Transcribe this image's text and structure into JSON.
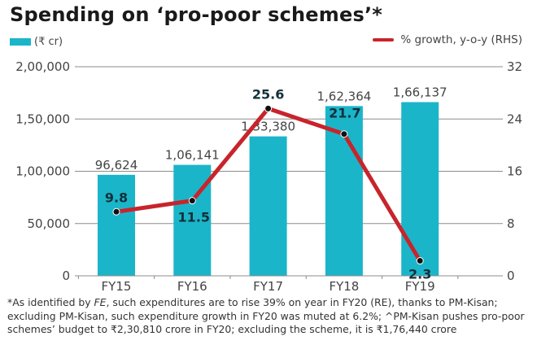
{
  "chart_data": {
    "type": "bar+line",
    "title": "Spending on ‘pro-poor schemes’*",
    "categories": [
      "FY15",
      "FY16",
      "FY17",
      "FY18",
      "FY19"
    ],
    "series": [
      {
        "name": "(₹ cr)",
        "type": "bar",
        "axis": "left",
        "color": "#1bb5c9",
        "values": [
          96624,
          106141,
          133380,
          162364,
          166137
        ],
        "labels": [
          "96,624",
          "1,06,141",
          "1,33,380",
          "1,62,364",
          "1,66,137"
        ]
      },
      {
        "name": "% growth, y-o-y (RHS)",
        "type": "line",
        "axis": "right",
        "color": "#c8242b",
        "values": [
          9.8,
          11.5,
          25.6,
          21.7,
          2.3
        ],
        "labels": [
          "9.8",
          "11.5",
          "25.6",
          "21.7",
          "2.3"
        ]
      }
    ],
    "left_axis": {
      "ylim": [
        0,
        200000
      ],
      "ticks": [
        0,
        50000,
        100000,
        150000,
        200000
      ],
      "tick_labels": [
        "0",
        "50,000",
        "1,00,000",
        "1,50,000",
        "2,00,000"
      ]
    },
    "right_axis": {
      "ylim": [
        0,
        32
      ],
      "ticks": [
        0,
        8,
        16,
        24,
        32
      ],
      "tick_labels": [
        "0",
        "8",
        "16",
        "24",
        "32"
      ]
    },
    "grid": true,
    "legend": [
      "top-left",
      "top-right"
    ]
  },
  "legend": {
    "bar_label": "(₹ cr)",
    "line_label": "% growth, y-o-y (RHS)"
  },
  "footnote": {
    "part1": "*As identified by ",
    "italic": "FE",
    "part2": ", such expenditures are to rise 39% on year in FY20 (RE), thanks to PM-Kisan; excluding PM-Kisan, such expenditure growth in FY20 was muted at 6.2%; ^PM-Kisan pushes pro-poor schemes’ budget to ₹2,30,810 crore in FY20; excluding the scheme, it is ₹1,76,440 crore"
  }
}
